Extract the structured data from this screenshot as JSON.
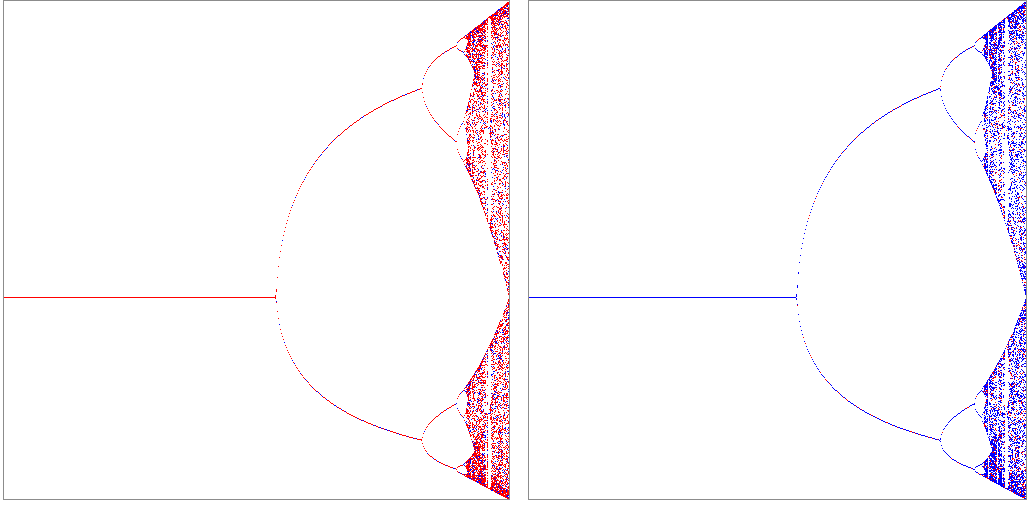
{
  "panels": [
    {
      "color": "#ff0000"
    },
    {
      "color": "#0000ff"
    }
  ]
}
